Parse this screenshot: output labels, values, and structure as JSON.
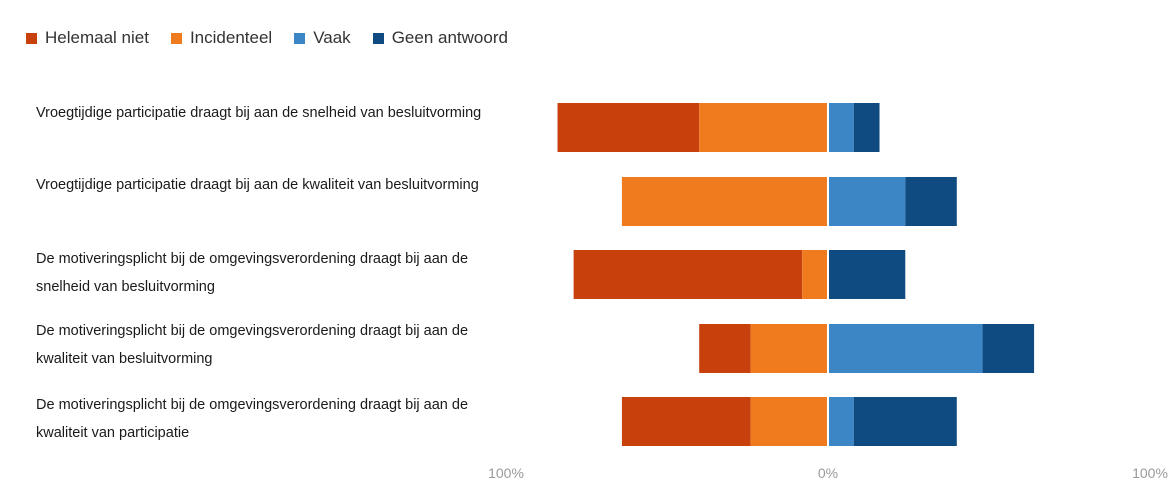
{
  "chart_data": {
    "type": "bar",
    "orientation": "horizontal",
    "stacking": "diverging",
    "legend_position": "top-left",
    "grid": false,
    "xlim": [
      -100,
      100
    ],
    "x_ticks": [
      "100%",
      "0%",
      "100%"
    ],
    "categories": [
      "Vroegtijdige participatie draagt bij aan de snelheid van besluitvorming",
      "Vroegtijdige participatie draagt bij aan de kwaliteit van besluitvorming",
      "De motiveringsplicht bij de omgevingsverordening draagt bij aan de snelheid van besluitvorming",
      "De motiveringsplicht bij de omgevingsverordening draagt bij aan de kwaliteit van besluitvorming",
      "De motiveringsplicht bij de omgevingsverordening draagt bij aan de kwaliteit van participatie"
    ],
    "series": [
      {
        "name": "Helemaal niet",
        "side": "negative",
        "color": "#c8400c",
        "values": [
          44,
          0,
          71,
          16,
          40
        ]
      },
      {
        "name": "Incidenteel",
        "side": "negative",
        "color": "#f07a1e",
        "values": [
          40,
          64,
          8,
          24,
          24
        ]
      },
      {
        "name": "Vaak",
        "side": "positive",
        "color": "#3d86c6",
        "values": [
          8,
          24,
          0,
          48,
          8
        ]
      },
      {
        "name": "Geen antwoord",
        "side": "positive",
        "color": "#0f4a80",
        "values": [
          8,
          16,
          24,
          16,
          32
        ]
      }
    ]
  }
}
